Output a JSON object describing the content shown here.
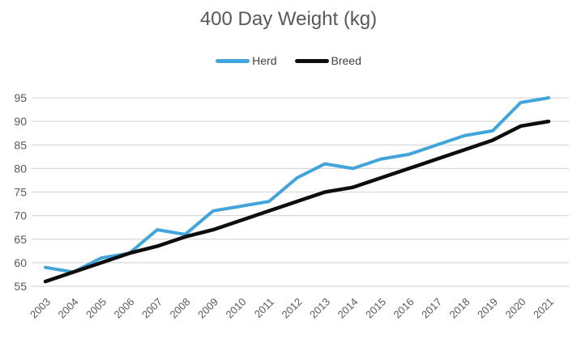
{
  "chart_data": {
    "type": "line",
    "title": "400 Day Weight (kg)",
    "categories": [
      "2003",
      "2004",
      "2005",
      "2006",
      "2007",
      "2008",
      "2009",
      "2010",
      "2011",
      "2012",
      "2013",
      "2014",
      "2015",
      "2016",
      "2017",
      "2018",
      "2019",
      "2020",
      "2021"
    ],
    "series": [
      {
        "name": "Herd",
        "color": "#41A5DB",
        "values": [
          59,
          58,
          61,
          62,
          67,
          66,
          71,
          72,
          73,
          78,
          81,
          80,
          82,
          83,
          85,
          87,
          88,
          94,
          95
        ]
      },
      {
        "name": "Breed",
        "color": "#0D0D0D",
        "values": [
          56,
          58,
          60,
          62,
          63.5,
          65.5,
          67,
          69,
          71,
          73,
          75,
          76,
          78,
          80,
          82,
          84,
          86,
          89,
          90
        ]
      }
    ],
    "ylim": [
      55,
      95
    ],
    "y_ticks": [
      55,
      60,
      65,
      70,
      75,
      80,
      85,
      90,
      95
    ],
    "xlabel": "",
    "ylabel": "",
    "grid": true,
    "legend_position": "top",
    "colors": {
      "gridline": "#D9D9D9",
      "axis_text": "#595959",
      "title_text": "#595959",
      "legend_text": "#404040"
    }
  }
}
